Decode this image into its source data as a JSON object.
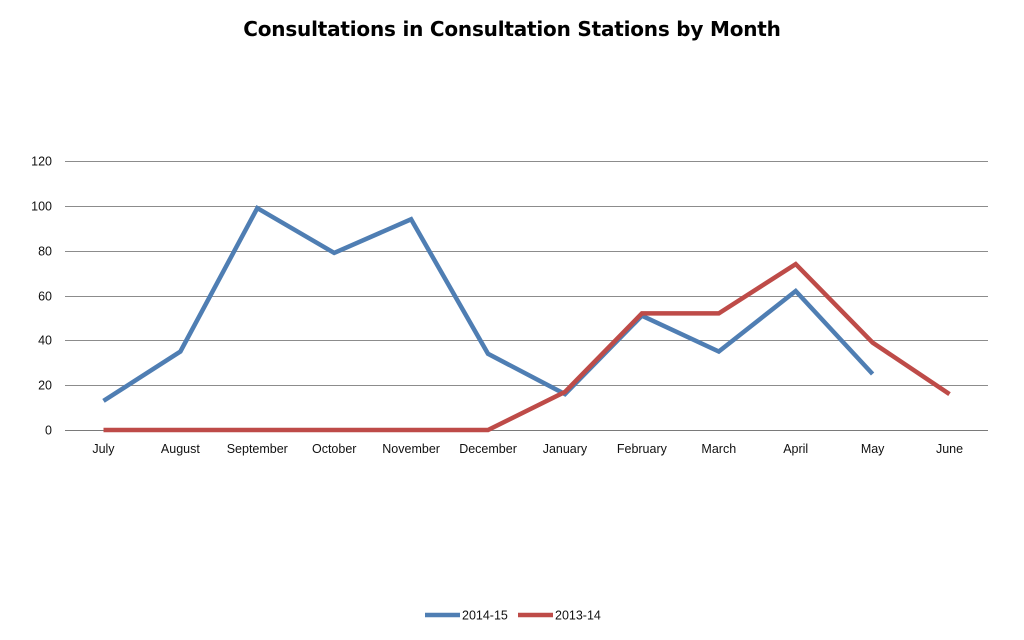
{
  "chart_data": {
    "type": "line",
    "title": "Consultations in Consultation Stations by Month",
    "xlabel": "",
    "ylabel": "",
    "categories": [
      "July",
      "August",
      "September",
      "October",
      "November",
      "December",
      "January",
      "February",
      "March",
      "April",
      "May",
      "June"
    ],
    "ylim": [
      0,
      120
    ],
    "yticks": [
      0,
      20,
      40,
      60,
      80,
      100,
      120
    ],
    "grid": true,
    "legend": "bottom",
    "series": [
      {
        "name": "2014-15",
        "color": "#4F7EB3",
        "values": [
          13,
          35,
          99,
          79,
          94,
          34,
          16,
          51,
          35,
          62,
          25,
          null
        ]
      },
      {
        "name": "2013-14",
        "color": "#BE4B48",
        "values": [
          0,
          0,
          0,
          0,
          0,
          0,
          17,
          52,
          52,
          74,
          39,
          16
        ]
      }
    ]
  }
}
